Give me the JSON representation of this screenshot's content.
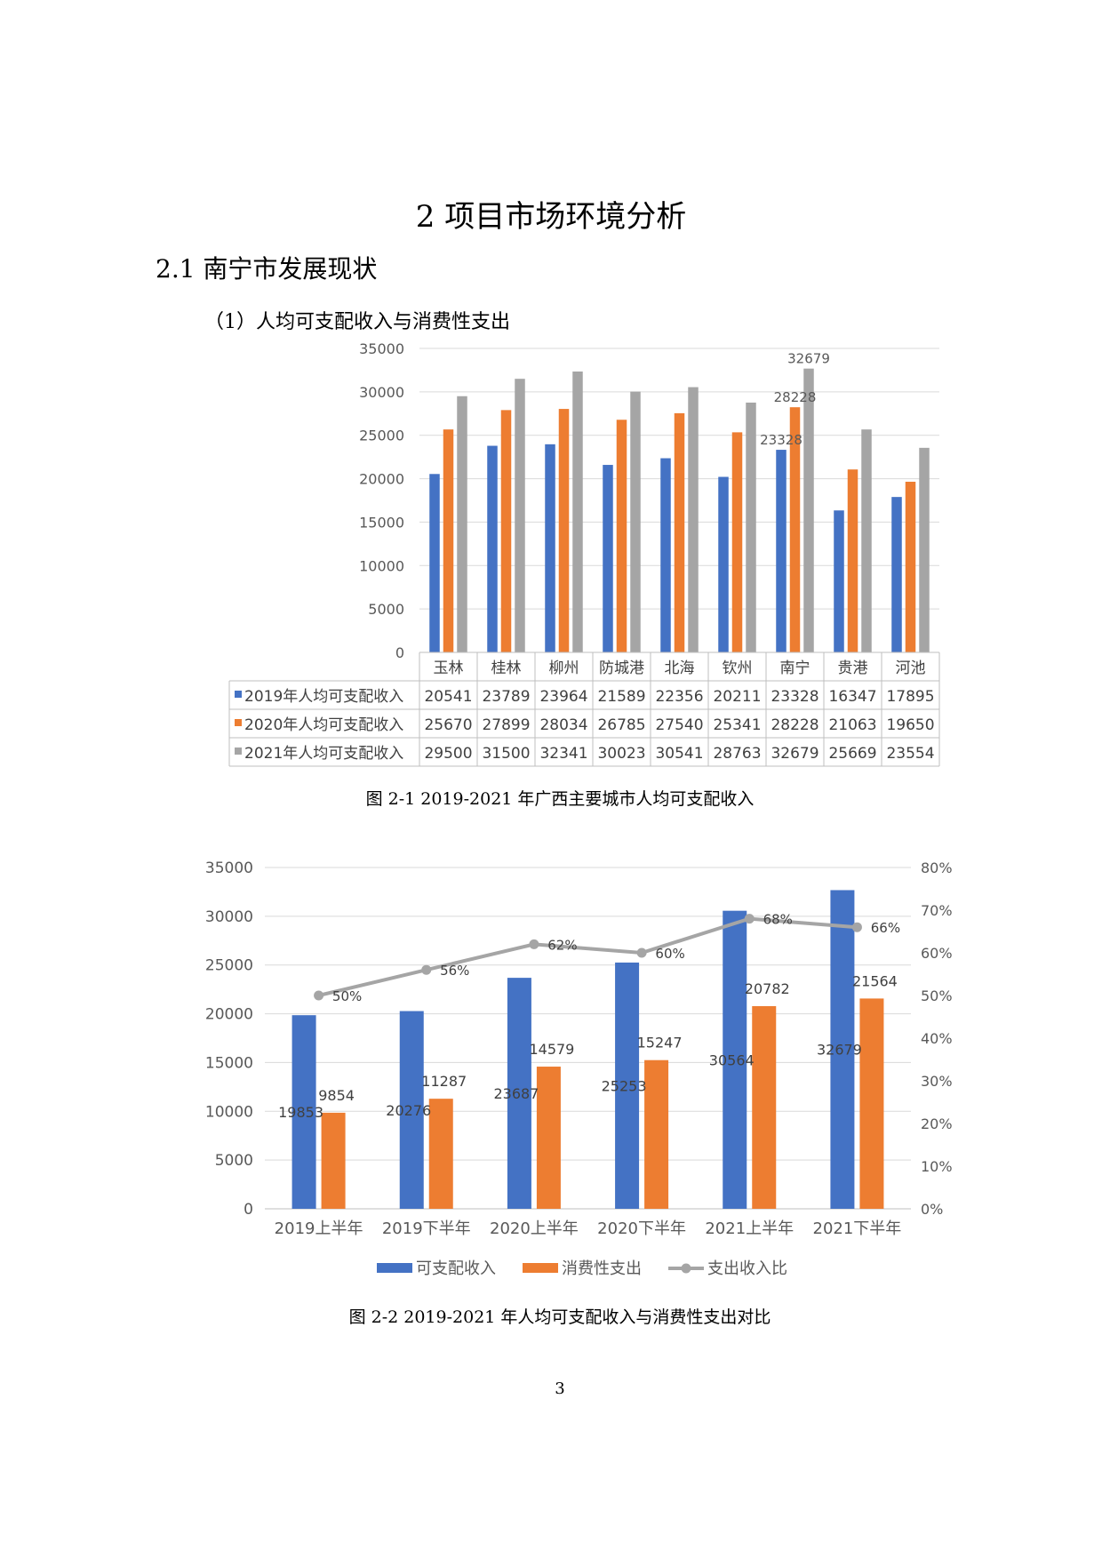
{
  "document": {
    "title": "2 项目市场环境分析",
    "section": "2.1 南宁市发展现状",
    "subsection": "（1）人均可支配收入与消费性支出",
    "caption1": "图 2-1 2019-2021 年广西主要城市人均可支配收入",
    "caption2": "图 2-2 2019-2021 年人均可支配收入与消费性支出对比",
    "page_number": "3"
  },
  "chart_data": [
    {
      "type": "bar",
      "title": "",
      "categories": [
        "玉林",
        "桂林",
        "柳州",
        "防城港",
        "北海",
        "钦州",
        "南宁",
        "贵港",
        "河池"
      ],
      "series": [
        {
          "name": "2019年人均可支配收入",
          "color": "#4472C4",
          "values": [
            20541,
            23789,
            23964,
            21589,
            22356,
            20211,
            23328,
            16347,
            17895
          ]
        },
        {
          "name": "2020年人均可支配收入",
          "color": "#ED7D31",
          "values": [
            25670,
            27899,
            28034,
            26785,
            27540,
            25341,
            28228,
            21063,
            19650
          ]
        },
        {
          "name": "2021年人均可支配收入",
          "color": "#A5A5A5",
          "values": [
            29500,
            31500,
            32341,
            30023,
            30541,
            28763,
            32679,
            25669,
            23554
          ]
        }
      ],
      "ylim": [
        0,
        35000
      ],
      "yticks": [
        "0",
        "5000",
        "10000",
        "15000",
        "20000",
        "25000",
        "30000",
        "35000"
      ],
      "data_labels": [
        {
          "series": 0,
          "index": 6,
          "text": "23328"
        },
        {
          "series": 1,
          "index": 6,
          "text": "28228"
        },
        {
          "series": 2,
          "index": 6,
          "text": "32679"
        }
      ],
      "data_table": true
    },
    {
      "type": "bar",
      "title": "",
      "categories": [
        "2019上半年",
        "2019下半年",
        "2020上半年",
        "2020下半年",
        "2021上半年",
        "2021下半年"
      ],
      "series": [
        {
          "name": "可支配收入",
          "color": "#4472C4",
          "values": [
            19853,
            20276,
            23687,
            25253,
            30564,
            32679
          ],
          "labels": [
            "19853",
            "20276",
            "23687",
            "25253",
            "30564",
            "32679"
          ]
        },
        {
          "name": "消费性支出",
          "color": "#ED7D31",
          "values": [
            9854,
            11287,
            14579,
            15247,
            20782,
            21564
          ],
          "labels": [
            "9854",
            "11287",
            "14579",
            "15247",
            "20782",
            "21564"
          ]
        }
      ],
      "line_series": {
        "name": "支出收入比",
        "color": "#A5A5A5",
        "values": [
          50,
          56,
          62,
          60,
          68,
          66
        ],
        "labels": [
          "50%",
          "56%",
          "62%",
          "60%",
          "68%",
          "66%"
        ],
        "axis": "secondary"
      },
      "ylim": [
        0,
        35000
      ],
      "yticks": [
        "0",
        "5000",
        "10000",
        "15000",
        "20000",
        "25000",
        "30000",
        "35000"
      ],
      "y2lim": [
        0,
        80
      ],
      "y2ticks": [
        "0%",
        "10%",
        "20%",
        "30%",
        "40%",
        "50%",
        "60%",
        "70%",
        "80%"
      ],
      "legend": "bottom"
    }
  ]
}
